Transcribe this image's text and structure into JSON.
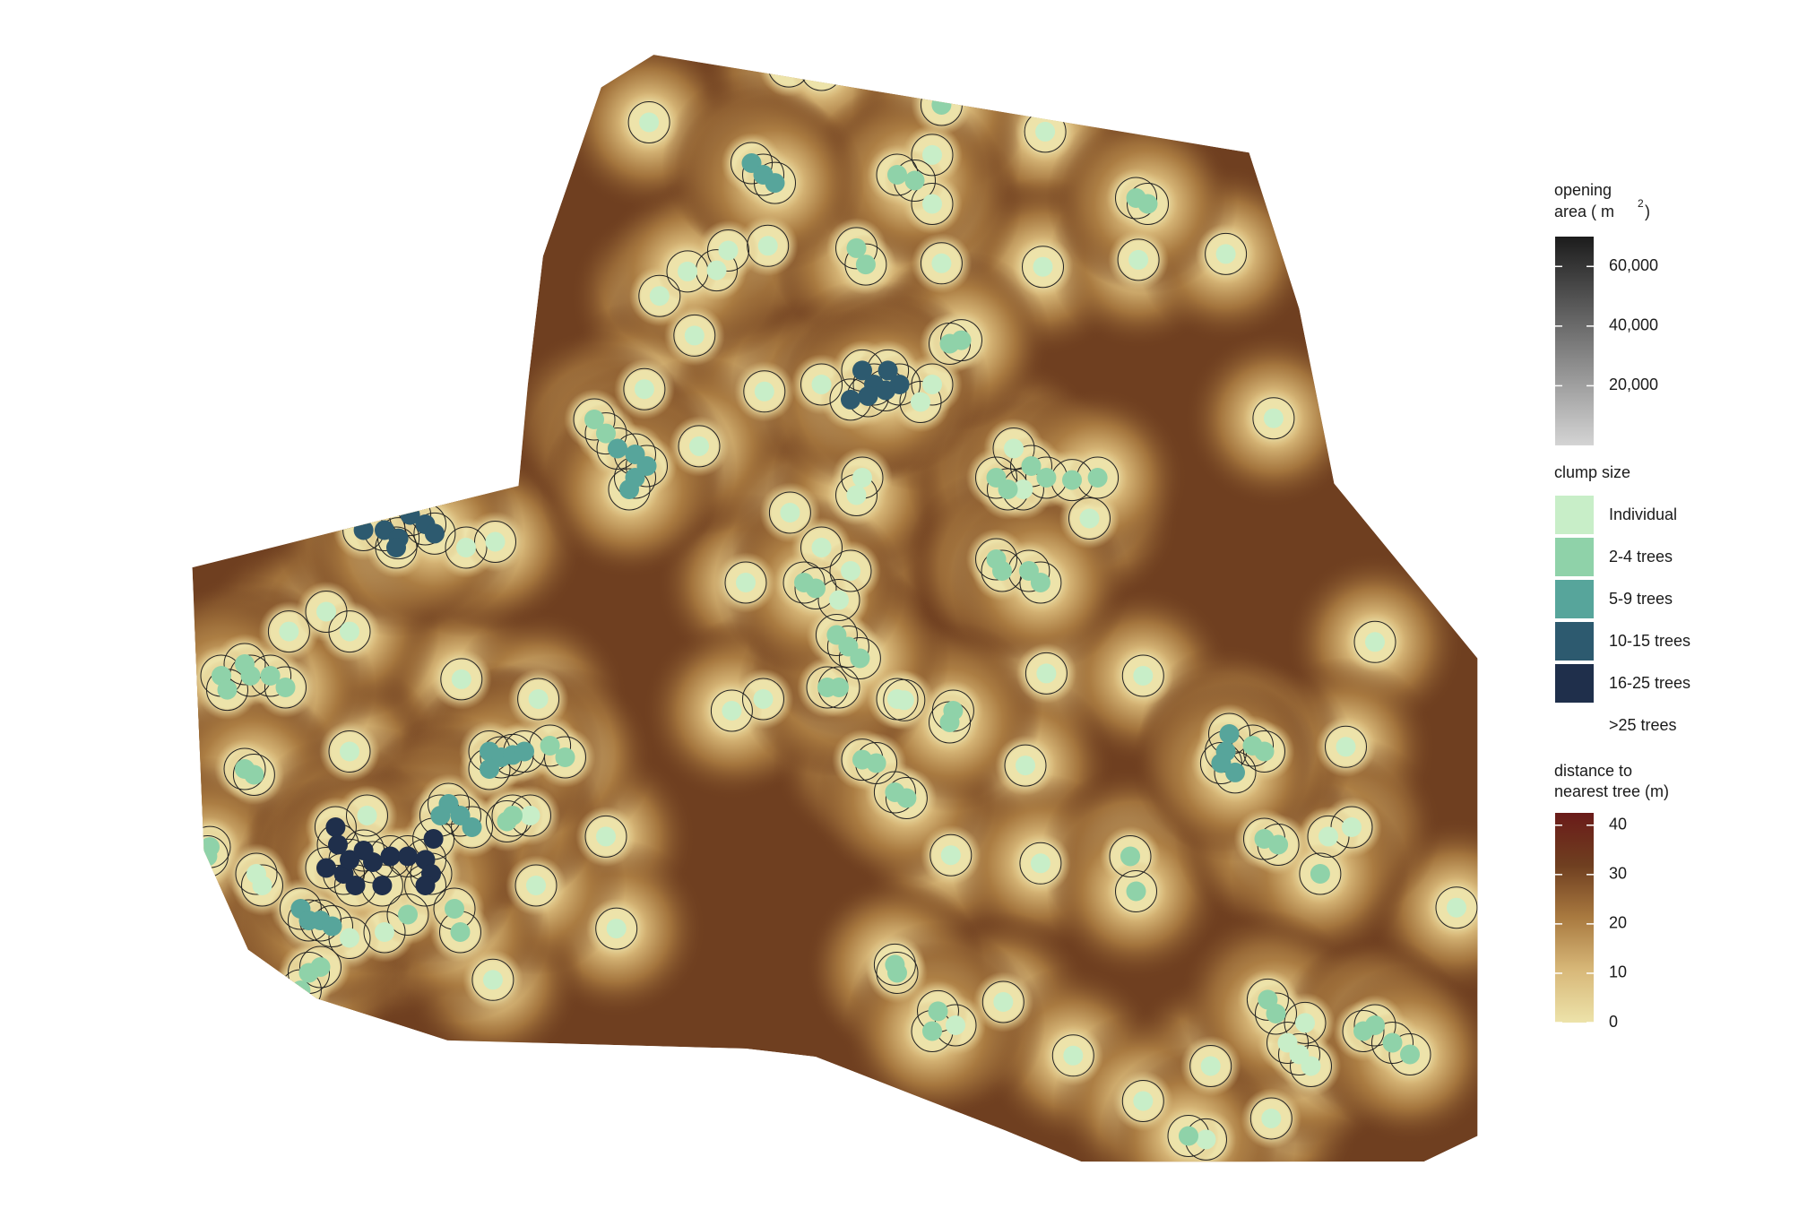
{
  "legends": {
    "opening_area": {
      "title_lines": [
        "opening",
        "area (   m"
      ],
      "superscript": "2",
      "title_end": ")",
      "lim": [
        0,
        70000
      ],
      "ticks": [
        {
          "value": 60000,
          "label": "60,000"
        },
        {
          "value": 40000,
          "label": "40,000"
        },
        {
          "value": 20000,
          "label": "20,000"
        }
      ],
      "colors": [
        "#d4d4d4",
        "#1c1c1c"
      ]
    },
    "clump_size": {
      "title": "clump size",
      "categories": [
        "Individual",
        "2-4 trees",
        "5-9 trees",
        "10-15 trees",
        "16-25 trees",
        ">25 trees"
      ],
      "colors": [
        "#c8eec8",
        "#8fd2a9",
        "#57a59b",
        "#2d5a6f",
        "#1f2f4b",
        "#ffffff"
      ]
    },
    "distance": {
      "title_lines": [
        "distance to",
        "nearest tree (m)"
      ],
      "lim": [
        0,
        42.5
      ],
      "ticks": [
        40,
        30,
        20,
        10,
        0
      ],
      "colors": [
        "#ede3aa",
        "#d8b879",
        "#a97a40",
        "#6f3f20",
        "#6a1b19"
      ]
    }
  }
}
